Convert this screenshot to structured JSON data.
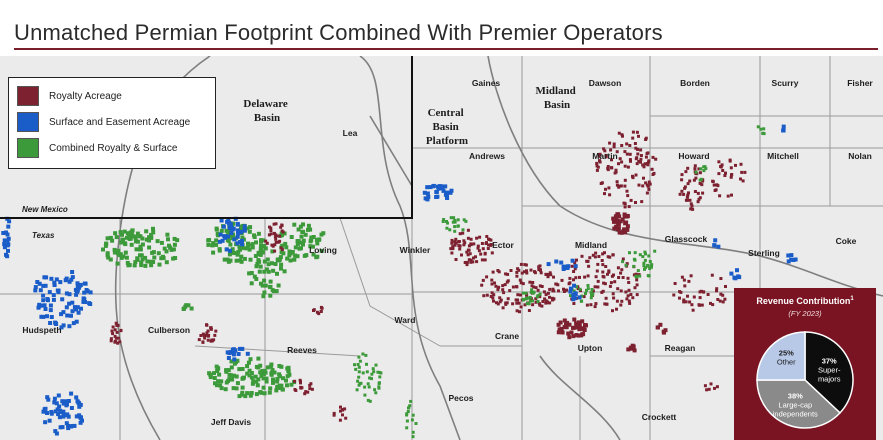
{
  "title": "Unmatched Permian Footprint Combined With Premier Operators",
  "colors": {
    "rule": "#7a1f2b",
    "royalty": "#7d2131",
    "surface": "#1a5cc8",
    "combined": "#3c9a3a",
    "map_bg": "#ebebeb",
    "boundary": "#9a9a9a",
    "panel": "#7a1322"
  },
  "legend": {
    "items": [
      {
        "label": "Royalty Acreage",
        "color": "#7d2131"
      },
      {
        "label": "Surface and Easement Acreage",
        "color": "#1a5cc8"
      },
      {
        "label": "Combined Royalty & Surface",
        "color": "#3c9a3a"
      }
    ]
  },
  "regions": {
    "delaware": [
      "Delaware",
      "Basin"
    ],
    "central": [
      "Central",
      "Basin",
      "Platform"
    ],
    "midland": [
      "Midland",
      "Basin"
    ]
  },
  "state_labels": {
    "nm": "New Mexico",
    "tx": "Texas"
  },
  "counties": [
    "Gaines",
    "Dawson",
    "Borden",
    "Scurry",
    "Fisher",
    "Lea",
    "Andrews",
    "Martin",
    "Howard",
    "Mitchell",
    "Nolan",
    "Loving",
    "Winkler",
    "Ector",
    "Midland",
    "Glasscock",
    "Sterling",
    "Coke",
    "Hudspeth",
    "Culberson",
    "Ward",
    "Reeves",
    "Crane",
    "Upton",
    "Reagan",
    "Jeff Davis",
    "Pecos",
    "Crockett"
  ],
  "revenue": {
    "title": "Revenue Contribution",
    "title_sup": "1",
    "subtitle": "(FY 2023)",
    "slices": [
      {
        "pct": 37,
        "pct_label": "37%",
        "lines": [
          "Super-",
          "majors"
        ],
        "color": "#0d0d0d",
        "text_color": "#ffffff"
      },
      {
        "pct": 38,
        "pct_label": "38%",
        "lines": [
          "Large-cap",
          "independents"
        ],
        "color": "#8a8a8a",
        "text_color": "#ffffff"
      },
      {
        "pct": 25,
        "pct_label": "25%",
        "lines": [
          "Other"
        ],
        "color": "#b8c9e8",
        "text_color": "#1d1d1d"
      }
    ]
  }
}
